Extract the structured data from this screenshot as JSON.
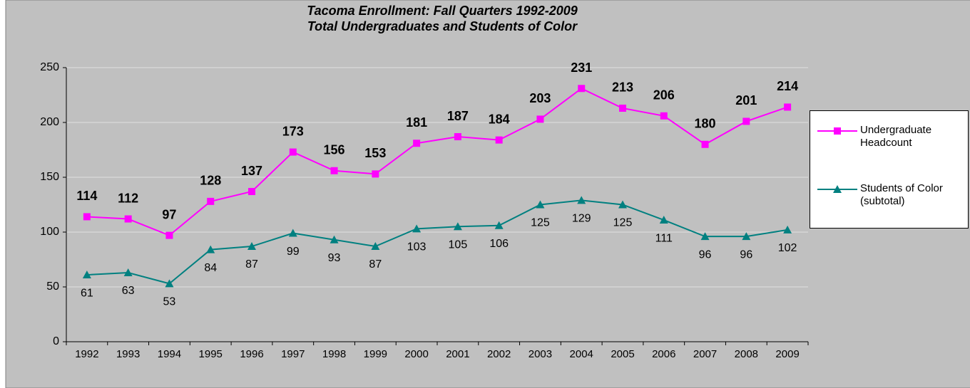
{
  "chart_data": {
    "type": "line",
    "title": "Tacoma Enrollment: Fall Quarters 1992-2009",
    "subtitle": "Total Undergraduates and Students of Color",
    "categories": [
      "1992",
      "1993",
      "1994",
      "1995",
      "1996",
      "1997",
      "1998",
      "1999",
      "2000",
      "2001",
      "2002",
      "2003",
      "2004",
      "2005",
      "2006",
      "2007",
      "2008",
      "2009"
    ],
    "series": [
      {
        "name": "Undergraduate Headcount",
        "color": "#ff00ff",
        "marker": "square",
        "values": [
          114,
          112,
          97,
          128,
          137,
          173,
          156,
          153,
          181,
          187,
          184,
          203,
          231,
          213,
          206,
          180,
          201,
          214
        ]
      },
      {
        "name": "Students of Color (subtotal)",
        "color": "#008080",
        "marker": "triangle",
        "values": [
          61,
          63,
          53,
          84,
          87,
          99,
          93,
          87,
          103,
          105,
          106,
          125,
          129,
          125,
          111,
          96,
          96,
          102
        ]
      }
    ],
    "ylim": [
      0,
      250
    ],
    "yticks": [
      0,
      50,
      100,
      150,
      200,
      250
    ],
    "grid": true,
    "legend": "right"
  }
}
